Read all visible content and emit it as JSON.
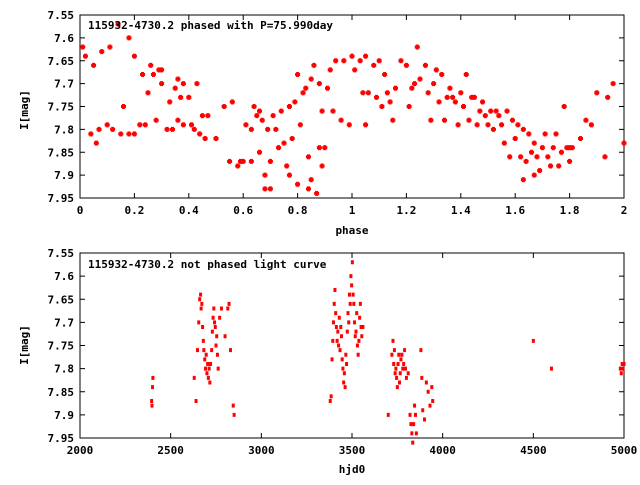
{
  "chart_data": [
    {
      "type": "scatter",
      "title": "115932-4730.2 phased with P=75.990day",
      "xlabel": "phase",
      "ylabel": "I[mag]",
      "xlim": [
        0,
        2
      ],
      "ylim": [
        7.95,
        7.55
      ],
      "y_inverted": true,
      "xticks": [
        "0",
        "0.2",
        "0.4",
        "0.6",
        "0.8",
        "1",
        "1.2",
        "1.4",
        "1.6",
        "1.8",
        "2"
      ],
      "yticks": [
        "7.55",
        "7.6",
        "7.65",
        "7.7",
        "7.75",
        "7.8",
        "7.85",
        "7.9",
        "7.95"
      ],
      "marker_color": "#ff0000",
      "marker": "cross",
      "points": [
        [
          0.01,
          7.62
        ],
        [
          0.02,
          7.64
        ],
        [
          0.04,
          7.81
        ],
        [
          0.05,
          7.66
        ],
        [
          0.06,
          7.83
        ],
        [
          0.07,
          7.8
        ],
        [
          0.08,
          7.63
        ],
        [
          0.1,
          7.79
        ],
        [
          0.11,
          7.62
        ],
        [
          0.12,
          7.8
        ],
        [
          0.14,
          7.57
        ],
        [
          0.15,
          7.81
        ],
        [
          0.16,
          7.75
        ],
        [
          0.18,
          7.81
        ],
        [
          0.18,
          7.6
        ],
        [
          0.2,
          7.81
        ],
        [
          0.2,
          7.64
        ],
        [
          0.22,
          7.79
        ],
        [
          0.23,
          7.68
        ],
        [
          0.24,
          7.79
        ],
        [
          0.25,
          7.72
        ],
        [
          0.26,
          7.66
        ],
        [
          0.27,
          7.68
        ],
        [
          0.28,
          7.78
        ],
        [
          0.29,
          7.67
        ],
        [
          0.3,
          7.67
        ],
        [
          0.3,
          7.7
        ],
        [
          0.32,
          7.8
        ],
        [
          0.33,
          7.74
        ],
        [
          0.34,
          7.8
        ],
        [
          0.35,
          7.71
        ],
        [
          0.36,
          7.69
        ],
        [
          0.36,
          7.78
        ],
        [
          0.37,
          7.73
        ],
        [
          0.38,
          7.79
        ],
        [
          0.38,
          7.7
        ],
        [
          0.4,
          7.73
        ],
        [
          0.41,
          7.79
        ],
        [
          0.42,
          7.8
        ],
        [
          0.43,
          7.7
        ],
        [
          0.44,
          7.81
        ],
        [
          0.45,
          7.77
        ],
        [
          0.46,
          7.82
        ],
        [
          0.47,
          7.77
        ],
        [
          0.5,
          7.82
        ],
        [
          0.53,
          7.75
        ],
        [
          0.55,
          7.87
        ],
        [
          0.56,
          7.74
        ],
        [
          0.58,
          7.88
        ],
        [
          0.59,
          7.87
        ],
        [
          0.6,
          7.87
        ],
        [
          0.61,
          7.79
        ],
        [
          0.63,
          7.8
        ],
        [
          0.63,
          7.87
        ],
        [
          0.64,
          7.75
        ],
        [
          0.65,
          7.77
        ],
        [
          0.66,
          7.76
        ],
        [
          0.66,
          7.85
        ],
        [
          0.67,
          7.78
        ],
        [
          0.68,
          7.9
        ],
        [
          0.68,
          7.93
        ],
        [
          0.69,
          7.8
        ],
        [
          0.7,
          7.93
        ],
        [
          0.7,
          7.87
        ],
        [
          0.71,
          7.77
        ],
        [
          0.72,
          7.8
        ],
        [
          0.73,
          7.84
        ],
        [
          0.74,
          7.76
        ],
        [
          0.75,
          7.83
        ],
        [
          0.76,
          7.88
        ],
        [
          0.77,
          7.75
        ],
        [
          0.77,
          7.9
        ],
        [
          0.78,
          7.82
        ],
        [
          0.79,
          7.74
        ],
        [
          0.8,
          7.68
        ],
        [
          0.8,
          7.92
        ],
        [
          0.81,
          7.79
        ],
        [
          0.82,
          7.72
        ],
        [
          0.83,
          7.71
        ],
        [
          0.84,
          7.86
        ],
        [
          0.84,
          7.93
        ],
        [
          0.85,
          7.69
        ],
        [
          0.85,
          7.91
        ],
        [
          0.86,
          7.66
        ],
        [
          0.87,
          7.94
        ],
        [
          0.88,
          7.7
        ],
        [
          0.88,
          7.84
        ],
        [
          0.89,
          7.88
        ],
        [
          0.89,
          7.76
        ],
        [
          0.9,
          7.84
        ],
        [
          0.91,
          7.71
        ],
        [
          0.92,
          7.67
        ],
        [
          0.93,
          7.76
        ],
        [
          0.94,
          7.65
        ],
        [
          0.96,
          7.78
        ],
        [
          0.97,
          7.65
        ],
        [
          0.99,
          7.79
        ],
        [
          1,
          7.64
        ],
        [
          1.01,
          7.67
        ],
        [
          1.03,
          7.65
        ],
        [
          1.04,
          7.72
        ],
        [
          1.05,
          7.64
        ],
        [
          1.05,
          7.79
        ],
        [
          1.06,
          7.72
        ],
        [
          1.08,
          7.66
        ],
        [
          1.09,
          7.73
        ],
        [
          1.1,
          7.65
        ],
        [
          1.11,
          7.75
        ],
        [
          1.12,
          7.68
        ],
        [
          1.13,
          7.72
        ],
        [
          1.14,
          7.74
        ],
        [
          1.15,
          7.78
        ],
        [
          1.16,
          7.71
        ],
        [
          1.18,
          7.65
        ],
        [
          1.2,
          7.66
        ],
        [
          1.21,
          7.75
        ],
        [
          1.22,
          7.71
        ],
        [
          1.23,
          7.7
        ],
        [
          1.24,
          7.62
        ],
        [
          1.25,
          7.69
        ],
        [
          1.27,
          7.66
        ],
        [
          1.28,
          7.72
        ],
        [
          1.29,
          7.78
        ],
        [
          1.3,
          7.7
        ],
        [
          1.31,
          7.67
        ],
        [
          1.32,
          7.74
        ],
        [
          1.33,
          7.68
        ],
        [
          1.34,
          7.78
        ],
        [
          1.35,
          7.73
        ],
        [
          1.36,
          7.71
        ],
        [
          1.37,
          7.73
        ],
        [
          1.38,
          7.74
        ],
        [
          1.39,
          7.79
        ],
        [
          1.4,
          7.72
        ],
        [
          1.41,
          7.75
        ],
        [
          1.42,
          7.68
        ],
        [
          1.43,
          7.78
        ],
        [
          1.44,
          7.73
        ],
        [
          1.45,
          7.73
        ],
        [
          1.46,
          7.79
        ],
        [
          1.47,
          7.76
        ],
        [
          1.48,
          7.74
        ],
        [
          1.49,
          7.77
        ],
        [
          1.5,
          7.79
        ],
        [
          1.51,
          7.76
        ],
        [
          1.52,
          7.8
        ],
        [
          1.53,
          7.76
        ],
        [
          1.54,
          7.77
        ],
        [
          1.55,
          7.79
        ],
        [
          1.56,
          7.83
        ],
        [
          1.57,
          7.76
        ],
        [
          1.58,
          7.86
        ],
        [
          1.59,
          7.78
        ],
        [
          1.6,
          7.82
        ],
        [
          1.61,
          7.79
        ],
        [
          1.62,
          7.86
        ],
        [
          1.63,
          7.8
        ],
        [
          1.63,
          7.91
        ],
        [
          1.64,
          7.87
        ],
        [
          1.65,
          7.81
        ],
        [
          1.66,
          7.85
        ],
        [
          1.67,
          7.83
        ],
        [
          1.67,
          7.9
        ],
        [
          1.68,
          7.86
        ],
        [
          1.69,
          7.89
        ],
        [
          1.7,
          7.84
        ],
        [
          1.71,
          7.81
        ],
        [
          1.72,
          7.86
        ],
        [
          1.73,
          7.88
        ],
        [
          1.74,
          7.84
        ],
        [
          1.75,
          7.81
        ],
        [
          1.76,
          7.88
        ],
        [
          1.77,
          7.85
        ],
        [
          1.78,
          7.75
        ],
        [
          1.79,
          7.84
        ],
        [
          1.8,
          7.84
        ],
        [
          1.8,
          7.87
        ],
        [
          1.81,
          7.84
        ],
        [
          1.84,
          7.82
        ],
        [
          1.86,
          7.78
        ],
        [
          1.88,
          7.79
        ],
        [
          1.9,
          7.72
        ],
        [
          1.93,
          7.86
        ],
        [
          1.94,
          7.73
        ],
        [
          1.96,
          7.7
        ],
        [
          2,
          7.83
        ]
      ]
    },
    {
      "type": "scatter",
      "title": "115932-4730.2 not phased light curve",
      "xlabel": "hjd0",
      "ylabel": "I[mag]",
      "xlim": [
        2000,
        5000
      ],
      "ylim": [
        7.95,
        7.55
      ],
      "y_inverted": true,
      "xticks": [
        "2000",
        "2500",
        "3000",
        "3500",
        "4000",
        "4500",
        "5000"
      ],
      "yticks": [
        "7.55",
        "7.6",
        "7.65",
        "7.7",
        "7.75",
        "7.8",
        "7.85",
        "7.9",
        "7.95"
      ],
      "marker_color": "#ff0000",
      "marker": "dot",
      "points": [
        [
          2395,
          7.87
        ],
        [
          2397,
          7.88
        ],
        [
          2400,
          7.84
        ],
        [
          2402,
          7.82
        ],
        [
          2630,
          7.82
        ],
        [
          2640,
          7.87
        ],
        [
          2648,
          7.76
        ],
        [
          2655,
          7.7
        ],
        [
          2660,
          7.65
        ],
        [
          2665,
          7.64
        ],
        [
          2668,
          7.67
        ],
        [
          2672,
          7.66
        ],
        [
          2676,
          7.71
        ],
        [
          2680,
          7.74
        ],
        [
          2683,
          7.76
        ],
        [
          2688,
          7.78
        ],
        [
          2692,
          7.8
        ],
        [
          2696,
          7.77
        ],
        [
          2700,
          7.81
        ],
        [
          2704,
          7.79
        ],
        [
          2708,
          7.82
        ],
        [
          2712,
          7.8
        ],
        [
          2716,
          7.83
        ],
        [
          2720,
          7.79
        ],
        [
          2726,
          7.76
        ],
        [
          2730,
          7.72
        ],
        [
          2734,
          7.69
        ],
        [
          2738,
          7.67
        ],
        [
          2742,
          7.7
        ],
        [
          2746,
          7.71
        ],
        [
          2750,
          7.75
        ],
        [
          2754,
          7.73
        ],
        [
          2758,
          7.77
        ],
        [
          2762,
          7.8
        ],
        [
          2770,
          7.69
        ],
        [
          2780,
          7.67
        ],
        [
          2800,
          7.73
        ],
        [
          2815,
          7.67
        ],
        [
          2822,
          7.66
        ],
        [
          2830,
          7.76
        ],
        [
          2845,
          7.88
        ],
        [
          2850,
          7.9
        ],
        [
          3380,
          7.87
        ],
        [
          3385,
          7.86
        ],
        [
          3390,
          7.78
        ],
        [
          3394,
          7.74
        ],
        [
          3398,
          7.7
        ],
        [
          3402,
          7.66
        ],
        [
          3406,
          7.63
        ],
        [
          3410,
          7.68
        ],
        [
          3414,
          7.71
        ],
        [
          3418,
          7.74
        ],
        [
          3422,
          7.72
        ],
        [
          3426,
          7.75
        ],
        [
          3430,
          7.69
        ],
        [
          3434,
          7.76
        ],
        [
          3438,
          7.71
        ],
        [
          3442,
          7.73
        ],
        [
          3446,
          7.78
        ],
        [
          3450,
          7.8
        ],
        [
          3454,
          7.83
        ],
        [
          3458,
          7.81
        ],
        [
          3462,
          7.84
        ],
        [
          3466,
          7.77
        ],
        [
          3470,
          7.79
        ],
        [
          3474,
          7.72
        ],
        [
          3478,
          7.68
        ],
        [
          3482,
          7.7
        ],
        [
          3486,
          7.64
        ],
        [
          3490,
          7.66
        ],
        [
          3494,
          7.6
        ],
        [
          3498,
          7.62
        ],
        [
          3502,
          7.57
        ],
        [
          3506,
          7.64
        ],
        [
          3510,
          7.66
        ],
        [
          3514,
          7.7
        ],
        [
          3518,
          7.73
        ],
        [
          3522,
          7.72
        ],
        [
          3526,
          7.68
        ],
        [
          3530,
          7.75
        ],
        [
          3534,
          7.77
        ],
        [
          3538,
          7.74
        ],
        [
          3542,
          7.69
        ],
        [
          3546,
          7.66
        ],
        [
          3550,
          7.71
        ],
        [
          3554,
          7.73
        ],
        [
          3560,
          7.71
        ],
        [
          3700,
          7.9
        ],
        [
          3720,
          7.77
        ],
        [
          3726,
          7.74
        ],
        [
          3730,
          7.79
        ],
        [
          3734,
          7.76
        ],
        [
          3738,
          7.81
        ],
        [
          3742,
          7.8
        ],
        [
          3746,
          7.82
        ],
        [
          3750,
          7.84
        ],
        [
          3754,
          7.79
        ],
        [
          3758,
          7.77
        ],
        [
          3762,
          7.83
        ],
        [
          3766,
          7.81
        ],
        [
          3770,
          7.78
        ],
        [
          3775,
          7.77
        ],
        [
          3780,
          7.8
        ],
        [
          3785,
          7.79
        ],
        [
          3790,
          7.76
        ],
        [
          3795,
          7.8
        ],
        [
          3800,
          7.82
        ],
        [
          3810,
          7.81
        ],
        [
          3820,
          7.9
        ],
        [
          3825,
          7.92
        ],
        [
          3830,
          7.94
        ],
        [
          3835,
          7.96
        ],
        [
          3840,
          7.92
        ],
        [
          3845,
          7.88
        ],
        [
          3850,
          7.9
        ],
        [
          3855,
          7.94
        ],
        [
          3880,
          7.76
        ],
        [
          3885,
          7.82
        ],
        [
          3890,
          7.89
        ],
        [
          3900,
          7.91
        ],
        [
          3910,
          7.83
        ],
        [
          3920,
          7.85
        ],
        [
          3930,
          7.88
        ],
        [
          3940,
          7.84
        ],
        [
          3945,
          7.87
        ],
        [
          4500,
          7.74
        ],
        [
          4600,
          7.8
        ],
        [
          4980,
          7.8
        ],
        [
          4985,
          7.81
        ],
        [
          4990,
          7.79
        ],
        [
          4995,
          7.8
        ],
        [
          5000,
          7.79
        ]
      ]
    }
  ]
}
